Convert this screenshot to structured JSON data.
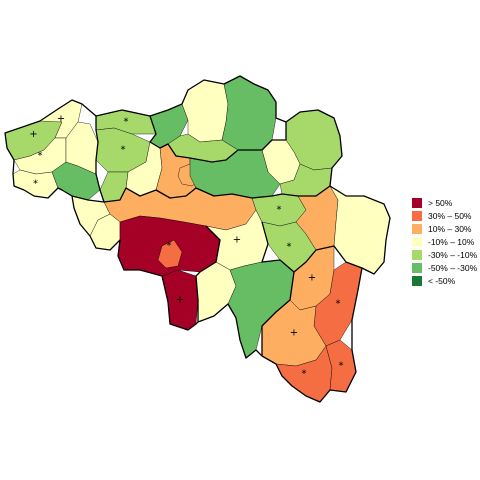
{
  "map": {
    "legend": [
      {
        "label": ">  50%",
        "color": "#a50026"
      },
      {
        "label": "30%  –   50%",
        "color": "#f46d43"
      },
      {
        "label": "10%  –   30%",
        "color": "#fdae61"
      },
      {
        "label": "-10%  –   10%",
        "color": "#ffffbf"
      },
      {
        "label": "-30%  –  -10%",
        "color": "#a6d96a"
      },
      {
        "label": "-50%  –  -30%",
        "color": "#66bd63"
      },
      {
        "label": "<  -50%",
        "color": "#1a7837"
      }
    ],
    "markers": [
      {
        "symbol": "+",
        "region": "region-west-coast-1"
      },
      {
        "symbol": "+",
        "region": "region-west-coast-2"
      },
      {
        "symbol": "*",
        "region": "region-west-2"
      },
      {
        "symbol": "*",
        "region": "region-west-3"
      },
      {
        "symbol": "*",
        "region": "region-north-1"
      },
      {
        "symbol": "*",
        "region": "region-north-2"
      },
      {
        "symbol": "*",
        "region": "region-hainaut-centre"
      },
      {
        "symbol": "+",
        "region": "region-hainaut-south"
      },
      {
        "symbol": "+",
        "region": "region-namur-north"
      },
      {
        "symbol": "*",
        "region": "region-liege-west"
      },
      {
        "symbol": "*",
        "region": "region-liege-centre"
      },
      {
        "symbol": "+",
        "region": "region-lux-north"
      },
      {
        "symbol": "*",
        "region": "region-lux-east"
      },
      {
        "symbol": "+",
        "region": "region-lux-centre"
      },
      {
        "symbol": "*",
        "region": "region-lux-south"
      },
      {
        "symbol": "*",
        "region": "region-lux-southeast"
      }
    ]
  }
}
